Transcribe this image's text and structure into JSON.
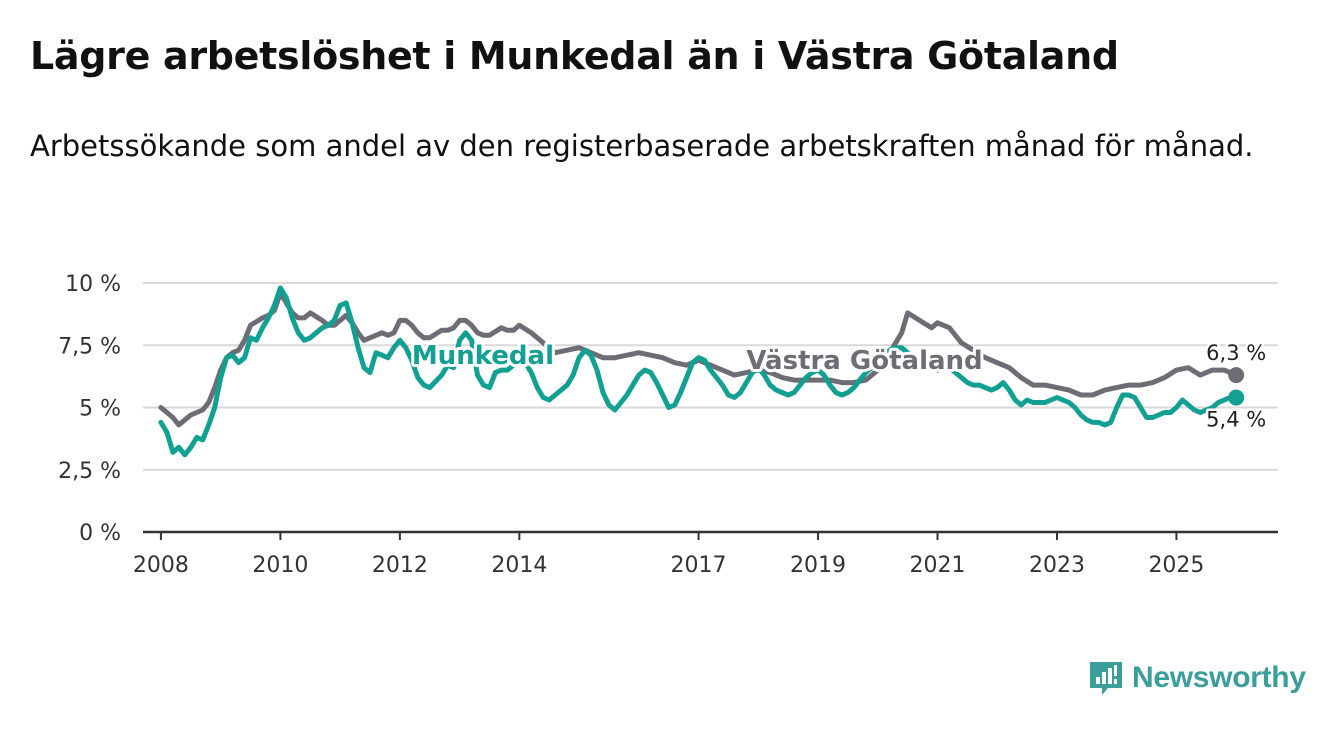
{
  "header": {
    "title": "Lägre arbetslöshet i Munkedal än i Västra Götaland",
    "subtitle": "Arbetssökande som andel av den registerbaserade arbetskraften månad för månad."
  },
  "brand": {
    "name": "Newsworthy",
    "icon": "newsworthy-logo-icon",
    "color": "#3a9e9a"
  },
  "chart_data": {
    "type": "line",
    "title": "Lägre arbetslöshet i Munkedal än i Västra Götaland",
    "subtitle": "Arbetssökande som andel av den registerbaserade arbetskraften månad för månad.",
    "xlabel": "",
    "ylabel": "",
    "x_range": [
      2007.7,
      2026.7
    ],
    "ylim": [
      0,
      10
    ],
    "y_ticks": [
      0,
      2.5,
      5,
      7.5,
      10
    ],
    "y_tick_labels": [
      "0 %",
      "2,5 %",
      "5 %",
      "7,5 %",
      "10 %"
    ],
    "x_ticks": [
      2008,
      2010,
      2012,
      2014,
      2017,
      2019,
      2021,
      2023,
      2025
    ],
    "x_tick_labels": [
      "2008",
      "2010",
      "2012",
      "2014",
      "2017",
      "2019",
      "2021",
      "2023",
      "2025"
    ],
    "grid": true,
    "series": [
      {
        "name": "Västra Götaland",
        "color": "#6e6c74",
        "end_label": "6,3 %",
        "points": [
          [
            2008.0,
            5.0
          ],
          [
            2008.1,
            4.8
          ],
          [
            2008.2,
            4.6
          ],
          [
            2008.3,
            4.3
          ],
          [
            2008.4,
            4.5
          ],
          [
            2008.5,
            4.7
          ],
          [
            2008.7,
            4.9
          ],
          [
            2008.8,
            5.2
          ],
          [
            2008.9,
            5.8
          ],
          [
            2009.0,
            6.5
          ],
          [
            2009.1,
            7.0
          ],
          [
            2009.2,
            7.2
          ],
          [
            2009.3,
            7.3
          ],
          [
            2009.4,
            7.7
          ],
          [
            2009.5,
            8.3
          ],
          [
            2009.7,
            8.6
          ],
          [
            2009.8,
            8.7
          ],
          [
            2009.9,
            8.9
          ],
          [
            2010.0,
            9.6
          ],
          [
            2010.1,
            9.2
          ],
          [
            2010.2,
            8.8
          ],
          [
            2010.3,
            8.6
          ],
          [
            2010.4,
            8.6
          ],
          [
            2010.5,
            8.8
          ],
          [
            2010.7,
            8.5
          ],
          [
            2010.8,
            8.3
          ],
          [
            2010.9,
            8.3
          ],
          [
            2011.0,
            8.5
          ],
          [
            2011.1,
            8.7
          ],
          [
            2011.2,
            8.4
          ],
          [
            2011.3,
            8.0
          ],
          [
            2011.4,
            7.7
          ],
          [
            2011.5,
            7.8
          ],
          [
            2011.7,
            8.0
          ],
          [
            2011.8,
            7.9
          ],
          [
            2011.9,
            8.0
          ],
          [
            2012.0,
            8.5
          ],
          [
            2012.1,
            8.5
          ],
          [
            2012.2,
            8.3
          ],
          [
            2012.3,
            8.0
          ],
          [
            2012.4,
            7.8
          ],
          [
            2012.5,
            7.8
          ],
          [
            2012.7,
            8.1
          ],
          [
            2012.8,
            8.1
          ],
          [
            2012.9,
            8.2
          ],
          [
            2013.0,
            8.5
          ],
          [
            2013.1,
            8.5
          ],
          [
            2013.2,
            8.3
          ],
          [
            2013.3,
            8.0
          ],
          [
            2013.4,
            7.9
          ],
          [
            2013.5,
            7.9
          ],
          [
            2013.7,
            8.2
          ],
          [
            2013.8,
            8.1
          ],
          [
            2013.9,
            8.1
          ],
          [
            2014.0,
            8.3
          ],
          [
            2014.2,
            8.0
          ],
          [
            2014.4,
            7.6
          ],
          [
            2014.6,
            7.2
          ],
          [
            2014.8,
            7.3
          ],
          [
            2015.0,
            7.4
          ],
          [
            2015.2,
            7.2
          ],
          [
            2015.4,
            7.0
          ],
          [
            2015.6,
            7.0
          ],
          [
            2015.8,
            7.1
          ],
          [
            2016.0,
            7.2
          ],
          [
            2016.2,
            7.1
          ],
          [
            2016.4,
            7.0
          ],
          [
            2016.6,
            6.8
          ],
          [
            2016.8,
            6.7
          ],
          [
            2017.0,
            6.9
          ],
          [
            2017.2,
            6.7
          ],
          [
            2017.4,
            6.5
          ],
          [
            2017.6,
            6.3
          ],
          [
            2017.8,
            6.4
          ],
          [
            2018.0,
            6.5
          ],
          [
            2018.2,
            6.4
          ],
          [
            2018.4,
            6.2
          ],
          [
            2018.6,
            6.1
          ],
          [
            2018.8,
            6.1
          ],
          [
            2019.0,
            6.1
          ],
          [
            2019.2,
            6.1
          ],
          [
            2019.4,
            6.0
          ],
          [
            2019.6,
            6.0
          ],
          [
            2019.8,
            6.1
          ],
          [
            2020.0,
            6.5
          ],
          [
            2020.2,
            7.2
          ],
          [
            2020.4,
            8.0
          ],
          [
            2020.5,
            8.8
          ],
          [
            2020.7,
            8.5
          ],
          [
            2020.9,
            8.2
          ],
          [
            2021.0,
            8.4
          ],
          [
            2021.2,
            8.2
          ],
          [
            2021.4,
            7.6
          ],
          [
            2021.6,
            7.3
          ],
          [
            2021.8,
            7.0
          ],
          [
            2022.0,
            6.8
          ],
          [
            2022.2,
            6.6
          ],
          [
            2022.4,
            6.2
          ],
          [
            2022.6,
            5.9
          ],
          [
            2022.8,
            5.9
          ],
          [
            2023.0,
            5.8
          ],
          [
            2023.2,
            5.7
          ],
          [
            2023.4,
            5.5
          ],
          [
            2023.6,
            5.5
          ],
          [
            2023.8,
            5.7
          ],
          [
            2024.0,
            5.8
          ],
          [
            2024.2,
            5.9
          ],
          [
            2024.4,
            5.9
          ],
          [
            2024.6,
            6.0
          ],
          [
            2024.8,
            6.2
          ],
          [
            2025.0,
            6.5
          ],
          [
            2025.2,
            6.6
          ],
          [
            2025.4,
            6.3
          ],
          [
            2025.6,
            6.5
          ],
          [
            2025.8,
            6.5
          ],
          [
            2026.0,
            6.3
          ]
        ]
      },
      {
        "name": "Munkedal",
        "color": "#12a092",
        "end_label": "5,4 %",
        "points": [
          [
            2008.0,
            4.4
          ],
          [
            2008.1,
            4.0
          ],
          [
            2008.2,
            3.2
          ],
          [
            2008.3,
            3.4
          ],
          [
            2008.4,
            3.1
          ],
          [
            2008.5,
            3.4
          ],
          [
            2008.6,
            3.8
          ],
          [
            2008.7,
            3.7
          ],
          [
            2008.8,
            4.3
          ],
          [
            2008.9,
            5.0
          ],
          [
            2009.0,
            6.2
          ],
          [
            2009.1,
            7.0
          ],
          [
            2009.2,
            7.1
          ],
          [
            2009.3,
            6.8
          ],
          [
            2009.4,
            7.0
          ],
          [
            2009.5,
            7.8
          ],
          [
            2009.6,
            7.7
          ],
          [
            2009.7,
            8.2
          ],
          [
            2009.8,
            8.6
          ],
          [
            2009.9,
            9.1
          ],
          [
            2010.0,
            9.8
          ],
          [
            2010.1,
            9.4
          ],
          [
            2010.2,
            8.6
          ],
          [
            2010.3,
            8.0
          ],
          [
            2010.4,
            7.7
          ],
          [
            2010.5,
            7.8
          ],
          [
            2010.6,
            8.0
          ],
          [
            2010.7,
            8.2
          ],
          [
            2010.8,
            8.3
          ],
          [
            2010.9,
            8.5
          ],
          [
            2011.0,
            9.1
          ],
          [
            2011.1,
            9.2
          ],
          [
            2011.2,
            8.4
          ],
          [
            2011.3,
            7.4
          ],
          [
            2011.4,
            6.6
          ],
          [
            2011.5,
            6.4
          ],
          [
            2011.6,
            7.2
          ],
          [
            2011.7,
            7.1
          ],
          [
            2011.8,
            7.0
          ],
          [
            2011.9,
            7.4
          ],
          [
            2012.0,
            7.7
          ],
          [
            2012.1,
            7.4
          ],
          [
            2012.2,
            6.9
          ],
          [
            2012.3,
            6.2
          ],
          [
            2012.4,
            5.9
          ],
          [
            2012.5,
            5.8
          ],
          [
            2012.7,
            6.3
          ],
          [
            2012.8,
            6.7
          ],
          [
            2012.9,
            6.6
          ],
          [
            2013.0,
            7.7
          ],
          [
            2013.1,
            8.0
          ],
          [
            2013.2,
            7.7
          ],
          [
            2013.3,
            6.3
          ],
          [
            2013.4,
            5.9
          ],
          [
            2013.5,
            5.8
          ],
          [
            2013.6,
            6.4
          ],
          [
            2013.7,
            6.5
          ],
          [
            2013.8,
            6.5
          ],
          [
            2013.9,
            6.7
          ],
          [
            2014.0,
            7.1
          ],
          [
            2014.1,
            6.8
          ],
          [
            2014.2,
            6.4
          ],
          [
            2014.3,
            5.8
          ],
          [
            2014.4,
            5.4
          ],
          [
            2014.5,
            5.3
          ],
          [
            2014.6,
            5.5
          ],
          [
            2014.8,
            5.9
          ],
          [
            2014.9,
            6.3
          ],
          [
            2015.0,
            7.0
          ],
          [
            2015.1,
            7.3
          ],
          [
            2015.2,
            7.1
          ],
          [
            2015.3,
            6.5
          ],
          [
            2015.4,
            5.6
          ],
          [
            2015.5,
            5.1
          ],
          [
            2015.6,
            4.9
          ],
          [
            2015.7,
            5.2
          ],
          [
            2015.8,
            5.5
          ],
          [
            2015.9,
            5.9
          ],
          [
            2016.0,
            6.3
          ],
          [
            2016.1,
            6.5
          ],
          [
            2016.2,
            6.4
          ],
          [
            2016.3,
            6.0
          ],
          [
            2016.4,
            5.5
          ],
          [
            2016.5,
            5.0
          ],
          [
            2016.6,
            5.1
          ],
          [
            2016.7,
            5.6
          ],
          [
            2016.8,
            6.2
          ],
          [
            2016.9,
            6.8
          ],
          [
            2017.0,
            7.0
          ],
          [
            2017.1,
            6.9
          ],
          [
            2017.2,
            6.5
          ],
          [
            2017.3,
            6.2
          ],
          [
            2017.4,
            5.9
          ],
          [
            2017.5,
            5.5
          ],
          [
            2017.6,
            5.4
          ],
          [
            2017.7,
            5.6
          ],
          [
            2017.8,
            6.0
          ],
          [
            2017.9,
            6.4
          ],
          [
            2018.0,
            6.6
          ],
          [
            2018.1,
            6.3
          ],
          [
            2018.2,
            5.9
          ],
          [
            2018.3,
            5.7
          ],
          [
            2018.4,
            5.6
          ],
          [
            2018.5,
            5.5
          ],
          [
            2018.6,
            5.6
          ],
          [
            2018.7,
            5.9
          ],
          [
            2018.8,
            6.2
          ],
          [
            2018.9,
            6.4
          ],
          [
            2019.0,
            6.5
          ],
          [
            2019.1,
            6.3
          ],
          [
            2019.2,
            5.9
          ],
          [
            2019.3,
            5.6
          ],
          [
            2019.4,
            5.5
          ],
          [
            2019.5,
            5.6
          ],
          [
            2019.6,
            5.8
          ],
          [
            2019.7,
            6.1
          ],
          [
            2019.8,
            6.4
          ],
          [
            2019.9,
            6.6
          ],
          [
            2020.0,
            6.7
          ],
          [
            2020.1,
            7.0
          ],
          [
            2020.2,
            7.3
          ],
          [
            2020.3,
            7.4
          ],
          [
            2020.4,
            7.4
          ],
          [
            2020.5,
            7.2
          ],
          [
            2020.6,
            7.0
          ],
          [
            2020.7,
            6.7
          ],
          [
            2020.8,
            6.6
          ],
          [
            2020.9,
            6.6
          ],
          [
            2021.0,
            6.5
          ],
          [
            2021.1,
            6.7
          ],
          [
            2021.2,
            6.6
          ],
          [
            2021.3,
            6.4
          ],
          [
            2021.4,
            6.2
          ],
          [
            2021.5,
            6.0
          ],
          [
            2021.6,
            5.9
          ],
          [
            2021.7,
            5.9
          ],
          [
            2021.8,
            5.8
          ],
          [
            2021.9,
            5.7
          ],
          [
            2022.0,
            5.8
          ],
          [
            2022.1,
            6.0
          ],
          [
            2022.2,
            5.7
          ],
          [
            2022.3,
            5.3
          ],
          [
            2022.4,
            5.1
          ],
          [
            2022.5,
            5.3
          ],
          [
            2022.6,
            5.2
          ],
          [
            2022.7,
            5.2
          ],
          [
            2022.8,
            5.2
          ],
          [
            2022.9,
            5.3
          ],
          [
            2023.0,
            5.4
          ],
          [
            2023.1,
            5.3
          ],
          [
            2023.2,
            5.2
          ],
          [
            2023.3,
            5.0
          ],
          [
            2023.4,
            4.7
          ],
          [
            2023.5,
            4.5
          ],
          [
            2023.6,
            4.4
          ],
          [
            2023.7,
            4.4
          ],
          [
            2023.8,
            4.3
          ],
          [
            2023.9,
            4.4
          ],
          [
            2024.0,
            5.0
          ],
          [
            2024.1,
            5.5
          ],
          [
            2024.2,
            5.5
          ],
          [
            2024.3,
            5.4
          ],
          [
            2024.4,
            5.0
          ],
          [
            2024.5,
            4.6
          ],
          [
            2024.6,
            4.6
          ],
          [
            2024.7,
            4.7
          ],
          [
            2024.8,
            4.8
          ],
          [
            2024.9,
            4.8
          ],
          [
            2025.0,
            5.0
          ],
          [
            2025.1,
            5.3
          ],
          [
            2025.2,
            5.1
          ],
          [
            2025.3,
            4.9
          ],
          [
            2025.4,
            4.8
          ],
          [
            2025.5,
            4.9
          ],
          [
            2025.6,
            5.0
          ],
          [
            2025.7,
            5.2
          ],
          [
            2025.8,
            5.3
          ],
          [
            2025.9,
            5.4
          ],
          [
            2026.0,
            5.4
          ]
        ]
      }
    ],
    "series_labels": [
      {
        "name": "Munkedal",
        "at_x": 2012.2,
        "at_y": 7.1,
        "color": "#12a092"
      },
      {
        "name": "Västra Götaland",
        "at_x": 2017.8,
        "at_y": 6.9,
        "color": "#6e6c74"
      }
    ]
  }
}
